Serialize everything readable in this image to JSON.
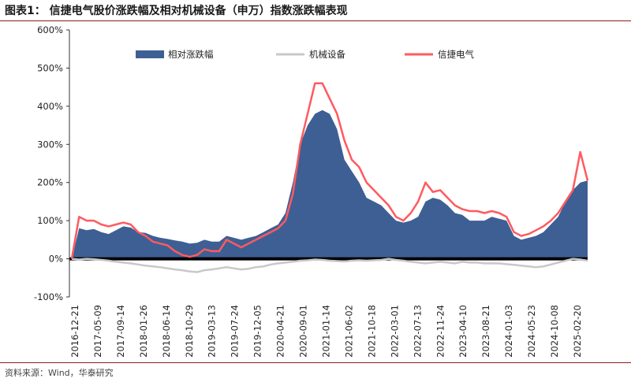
{
  "figure_title": "图表1：  信捷电气股价涨跌幅及相对机械设备（申万）指数涨跌幅表现",
  "source": "资料来源：Wind，华泰研究",
  "colors": {
    "relative": "#3d5f94",
    "machinery": "#c8c8c8",
    "xinjie": "#ff5a5f",
    "zero_line": "#000000"
  },
  "chart_data": {
    "type": "area",
    "title": "信捷电气股价涨跌幅及相对机械设备（申万）指数涨跌幅表现",
    "xlabel": "",
    "ylabel": "",
    "ylim": [
      -100,
      600
    ],
    "y_ticks": [
      "-100%",
      "0%",
      "100%",
      "200%",
      "300%",
      "400%",
      "500%",
      "600%"
    ],
    "y_tick_values": [
      -100,
      0,
      100,
      200,
      300,
      400,
      500,
      600
    ],
    "x_tick_labels": [
      "2016-12-21",
      "2017-05-09",
      "2017-09-14",
      "2018-01-26",
      "2018-06-14",
      "2018-10-29",
      "2019-03-13",
      "2019-07-24",
      "2019-12-05",
      "2020-04-21",
      "2020-09-01",
      "2021-01-14",
      "2021-06-02",
      "2021-10-18",
      "2022-03-01",
      "2022-07-13",
      "2022-11-24",
      "2023-04-10",
      "2023-08-21",
      "2024-01-03",
      "2024-05-23",
      "2024-10-08",
      "2025-02-20"
    ],
    "legend_position": "top",
    "grid": false,
    "series": [
      {
        "name": "相对涨跌幅",
        "kind": "area",
        "values": [
          0,
          80,
          75,
          78,
          70,
          65,
          75,
          85,
          82,
          70,
          68,
          60,
          55,
          52,
          48,
          45,
          40,
          42,
          50,
          45,
          45,
          60,
          55,
          50,
          55,
          60,
          70,
          80,
          90,
          120,
          200,
          300,
          350,
          380,
          390,
          380,
          340,
          260,
          230,
          200,
          160,
          150,
          140,
          120,
          100,
          95,
          100,
          110,
          150,
          160,
          155,
          140,
          120,
          115,
          100,
          100,
          100,
          110,
          105,
          100,
          60,
          50,
          55,
          60,
          70,
          90,
          110,
          150,
          180,
          200,
          205
        ]
      },
      {
        "name": "机械设备",
        "kind": "line",
        "values": [
          0,
          -2,
          0,
          -1,
          -3,
          -5,
          -8,
          -10,
          -12,
          -15,
          -18,
          -20,
          -22,
          -25,
          -28,
          -30,
          -33,
          -35,
          -30,
          -28,
          -25,
          -22,
          -25,
          -28,
          -26,
          -22,
          -20,
          -15,
          -12,
          -10,
          -8,
          -5,
          -4,
          -2,
          -3,
          -5,
          -6,
          -7,
          -5,
          -4,
          -5,
          -4,
          -3,
          0,
          -3,
          -5,
          -8,
          -10,
          -12,
          -10,
          -8,
          -10,
          -12,
          -8,
          -10,
          -10,
          -12,
          -12,
          -12,
          -14,
          -16,
          -18,
          -20,
          -22,
          -20,
          -15,
          -10,
          -5,
          0,
          -2,
          -5
        ]
      },
      {
        "name": "信捷电气",
        "kind": "line",
        "values": [
          0,
          110,
          100,
          100,
          90,
          85,
          90,
          95,
          90,
          70,
          60,
          45,
          40,
          35,
          20,
          10,
          5,
          10,
          25,
          20,
          20,
          50,
          40,
          30,
          40,
          50,
          60,
          70,
          80,
          100,
          170,
          300,
          380,
          460,
          460,
          420,
          380,
          310,
          260,
          240,
          200,
          180,
          160,
          140,
          110,
          100,
          120,
          150,
          200,
          175,
          180,
          160,
          140,
          130,
          125,
          125,
          120,
          125,
          120,
          110,
          70,
          60,
          65,
          75,
          85,
          100,
          120,
          150,
          180,
          280,
          205
        ]
      }
    ]
  }
}
